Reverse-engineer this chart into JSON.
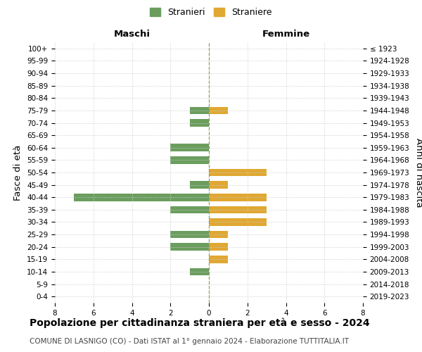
{
  "age_groups": [
    "100+",
    "95-99",
    "90-94",
    "85-89",
    "80-84",
    "75-79",
    "70-74",
    "65-69",
    "60-64",
    "55-59",
    "50-54",
    "45-49",
    "40-44",
    "35-39",
    "30-34",
    "25-29",
    "20-24",
    "15-19",
    "10-14",
    "5-9",
    "0-4"
  ],
  "birth_years": [
    "≤ 1923",
    "1924-1928",
    "1929-1933",
    "1934-1938",
    "1939-1943",
    "1944-1948",
    "1949-1953",
    "1954-1958",
    "1959-1963",
    "1964-1968",
    "1969-1973",
    "1974-1978",
    "1979-1983",
    "1984-1988",
    "1989-1993",
    "1994-1998",
    "1999-2003",
    "2004-2008",
    "2009-2013",
    "2014-2018",
    "2019-2023"
  ],
  "maschi": [
    0,
    0,
    0,
    0,
    0,
    1,
    1,
    0,
    2,
    2,
    0,
    1,
    7,
    2,
    0,
    2,
    2,
    0,
    1,
    0,
    0
  ],
  "femmine": [
    0,
    0,
    0,
    0,
    0,
    1,
    0,
    0,
    0,
    0,
    3,
    1,
    3,
    3,
    3,
    1,
    1,
    1,
    0,
    0,
    0
  ],
  "maschi_color": "#6b9e5e",
  "femmine_color": "#e0a832",
  "background_color": "#ffffff",
  "grid_color": "#cccccc",
  "title": "Popolazione per cittadinanza straniera per età e sesso - 2024",
  "subtitle": "COMUNE DI LASNIGO (CO) - Dati ISTAT al 1° gennaio 2024 - Elaborazione TUTTITALIA.IT",
  "xlabel_left": "Maschi",
  "xlabel_right": "Femmine",
  "ylabel_left": "Fasce di età",
  "ylabel_right": "Anni di nascita",
  "legend_maschi": "Stranieri",
  "legend_femmine": "Straniere",
  "xlim": 8,
  "center_line_color": "#999966",
  "tick_fontsize": 7.5,
  "label_fontsize": 9.5,
  "title_fontsize": 10,
  "subtitle_fontsize": 7.5
}
